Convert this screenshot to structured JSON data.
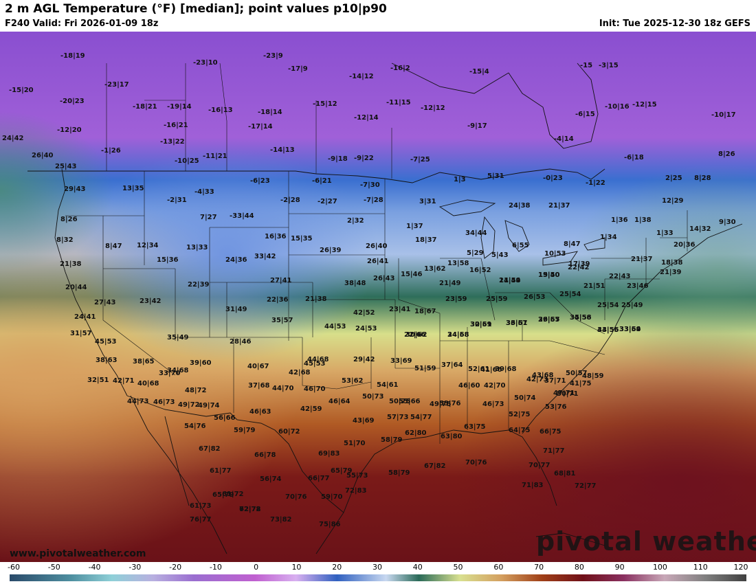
{
  "header": {
    "title": "2 m AGL Temperature (°F) [median]; point values p10|p90",
    "valid": "F240 Valid: Fri 2026-01-09 18z",
    "init": "Init: Tue 2025-12-30 18z GEFS"
  },
  "footer": {
    "site_url": "www.pivotalweather.com",
    "watermark": "pivotal weather"
  },
  "colorbar": {
    "labels": [
      "-60",
      "-50",
      "-40",
      "-30",
      "-20",
      "-10",
      "0",
      "10",
      "20",
      "30",
      "40",
      "50",
      "60",
      "70",
      "80",
      "90",
      "100",
      "110",
      "120"
    ],
    "stops": [
      {
        "value": -60,
        "color": "#2a4a6a"
      },
      {
        "value": -45,
        "color": "#4e8fa0"
      },
      {
        "value": -35,
        "color": "#8fd0d8"
      },
      {
        "value": -25,
        "color": "#b8b0e0"
      },
      {
        "value": -15,
        "color": "#9a6ed0"
      },
      {
        "value": 0,
        "color": "#c060d0"
      },
      {
        "value": 10,
        "color": "#d8b0f0"
      },
      {
        "value": 20,
        "color": "#3060c0"
      },
      {
        "value": 32,
        "color": "#c8d8f0"
      },
      {
        "value": 40,
        "color": "#2a6a58"
      },
      {
        "value": 50,
        "color": "#d8e090"
      },
      {
        "value": 60,
        "color": "#d4a060"
      },
      {
        "value": 70,
        "color": "#a04018"
      },
      {
        "value": 80,
        "color": "#701018"
      },
      {
        "value": 90,
        "color": "#8a3060"
      },
      {
        "value": 100,
        "color": "#c8a8b8"
      },
      {
        "value": 110,
        "color": "#808080"
      },
      {
        "value": 120,
        "color": "#404040"
      }
    ]
  },
  "point_values": [
    "-18|19",
    "-23|9",
    "-23|10",
    "-15|20",
    "-20|23",
    "-23|17",
    "-12|20",
    "-17|9",
    "-14|12",
    "-16|2",
    "-15|4",
    "-15",
    "-3|15",
    "-18|21",
    "-19|14",
    "-16|13",
    "-18|14",
    "-15|12",
    "-11|15",
    "-12|12",
    "-10|16",
    "-12|15",
    "-16|21",
    "-17|14",
    "-12|14",
    "-10|17",
    "24|42",
    "-13|22",
    "-9|17",
    "-6|15",
    "-1|26",
    "-14|13",
    "-4|14",
    "26|40",
    "-10|25",
    "-11|21",
    "-9|18",
    "-9|22",
    "-7|25",
    "-6|18",
    "8|26",
    "25|43",
    "13|35",
    "-6|23",
    "-6|21",
    "-7|30",
    "1|3",
    "5|31",
    "-0|23",
    "-1|22",
    "2|25",
    "8|28",
    "29|43",
    "-4|33",
    "-2|31",
    "-2|28",
    "-2|27",
    "-7|28",
    "3|31",
    "24|38",
    "21|37",
    "12|29",
    "8|26",
    "7|27",
    "-33|44",
    "2|32",
    "1|37",
    "1|36",
    "1|38",
    "14|32",
    "9|30",
    "8|32",
    "16|36",
    "15|35",
    "34|44",
    "1|33",
    "8|47",
    "12|34",
    "13|33",
    "26|39",
    "26|40",
    "18|37",
    "6|55",
    "8|47",
    "1|34",
    "20|36",
    "21|38",
    "15|36",
    "24|36",
    "33|42",
    "26|41",
    "5|29",
    "5|43",
    "10|53",
    "17|39",
    "21|37",
    "18|38",
    "20|44",
    "22|39",
    "27|41",
    "38|48",
    "26|43",
    "15|46",
    "13|62",
    "13|58",
    "16|52",
    "14|44",
    "15|40",
    "22|42",
    "21|39",
    "22|43",
    "27|43",
    "23|42",
    "22|36",
    "21|38",
    "21|49",
    "21|59",
    "19|50",
    "21|51",
    "23|46",
    "24|41",
    "31|49",
    "42|52",
    "23|41",
    "18|67",
    "23|59",
    "25|59",
    "26|53",
    "25|54",
    "25|54",
    "25|49",
    "31|57",
    "35|57",
    "44|53",
    "24|53",
    "22|66",
    "24|68",
    "30|59",
    "33|61",
    "29|57",
    "34|56",
    "33|55",
    "33|54",
    "45|53",
    "35|49",
    "28|46",
    "30|62",
    "34|58",
    "32|61",
    "36|57",
    "36|65",
    "35|58",
    "44|56",
    "33|69",
    "38|63",
    "38|65",
    "39|60",
    "40|67",
    "45|53",
    "29|42",
    "33|69",
    "37|64",
    "41|66",
    "43|68",
    "50|57",
    "48|59",
    "32|51",
    "33|70",
    "34|68",
    "37|68",
    "42|68",
    "44|68",
    "51|59",
    "52|61",
    "39|68",
    "37|71",
    "41|75",
    "42|71",
    "40|68",
    "44|70",
    "46|70",
    "53|62",
    "54|61",
    "55|66",
    "46|60",
    "42|70",
    "42|73",
    "47|71",
    "48|72",
    "44|73",
    "46|73",
    "49|72",
    "49|74",
    "42|59",
    "46|64",
    "50|73",
    "50|75",
    "49|75",
    "46|73",
    "50|74",
    "50|71",
    "56|66",
    "46|63",
    "43|69",
    "57|73",
    "54|77",
    "53|76",
    "52|75",
    "53|76",
    "54|76",
    "59|79",
    "60|72",
    "51|70",
    "58|79",
    "62|80",
    "63|80",
    "63|75",
    "64|75",
    "66|75",
    "67|82",
    "66|78",
    "69|83",
    "65|79",
    "55|73",
    "58|79",
    "67|82",
    "70|76",
    "71|77",
    "70|77",
    "68|81",
    "61|77",
    "56|74",
    "66|77",
    "72|83",
    "71|83",
    "72|77",
    "65|79",
    "61|72",
    "61|73",
    "72|78",
    "70|76",
    "59|70",
    "76|77",
    "62|72",
    "73|82",
    "75|86"
  ]
}
